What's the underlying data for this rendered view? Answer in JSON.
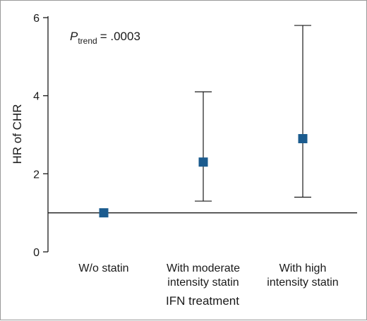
{
  "chart_data": {
    "type": "scatter",
    "title": "",
    "xlabel": "IFN treatment",
    "ylabel": "HR of CHR",
    "ylim": [
      0,
      6
    ],
    "yticks": [
      0,
      2,
      4,
      6
    ],
    "grid": false,
    "reference_line": 1,
    "categories": [
      [
        "W/o statin"
      ],
      [
        "With moderate",
        "intensity statin"
      ],
      [
        "With high",
        "intensity statin"
      ]
    ],
    "points": [
      {
        "y": 1.0
      },
      {
        "y": 2.3,
        "lower": 1.3,
        "upper": 4.1
      },
      {
        "y": 2.9,
        "lower": 1.4,
        "upper": 5.8
      }
    ],
    "annotation": {
      "symbol": "P",
      "subscript": "trend",
      "text": "= .0003"
    },
    "marker_color": "#1b5b8e",
    "line_color": "#1a1a1a"
  }
}
